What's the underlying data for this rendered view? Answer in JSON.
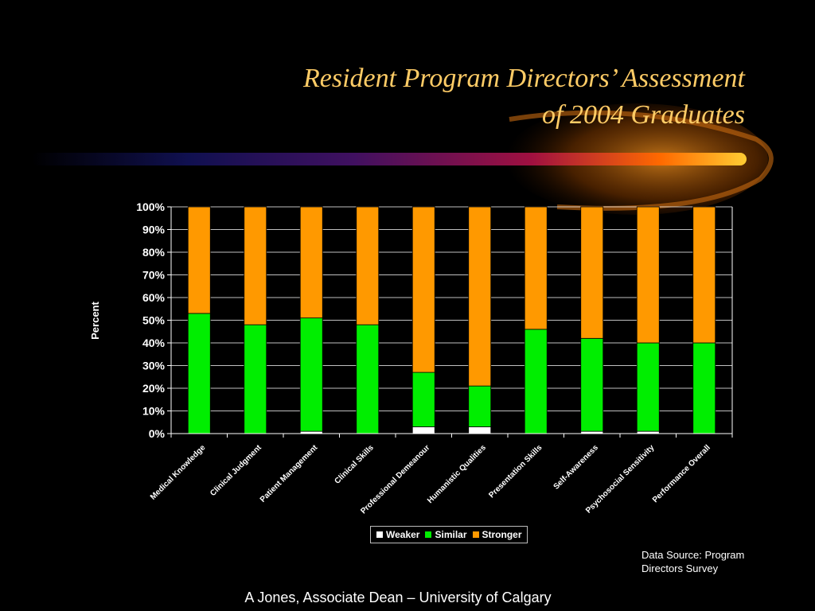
{
  "slide": {
    "title_line1": "Resident Program Directors’ Assessment",
    "title_line2": "of 2004 Graduates",
    "source_line1": "Data Source: Program",
    "source_line2": "Directors Survey",
    "footer": "A Jones, Associate Dean – University of Calgary",
    "colors": {
      "background": "#000000",
      "title": "#ffcc66"
    }
  },
  "chart_data": {
    "type": "bar",
    "stacked": true,
    "categories": [
      "Medical Knowledge",
      "Clinical  Judgment",
      "Patient Management",
      "Clinical Skills",
      "Professional Demeanour",
      "Humanistic Qualities",
      "Presentation Skills",
      "Self-Awareness",
      "Psychosocial Sensitivity",
      "Performance Overall"
    ],
    "series": [
      {
        "name": "Weaker",
        "color": "#ffffff",
        "values": [
          0,
          0,
          1,
          0,
          3,
          3,
          0,
          1,
          1,
          0
        ]
      },
      {
        "name": "Similar",
        "color": "#00ee00",
        "values": [
          53,
          48,
          50,
          48,
          24,
          18,
          46,
          41,
          39,
          40
        ]
      },
      {
        "name": "Stronger",
        "color": "#ff9900",
        "values": [
          47,
          52,
          49,
          52,
          73,
          79,
          54,
          58,
          60,
          60
        ]
      }
    ],
    "ylabel": "Percent",
    "xlabel": "",
    "ylim": [
      0,
      100
    ],
    "yticks": [
      "0%",
      "10%",
      "20%",
      "30%",
      "40%",
      "50%",
      "60%",
      "70%",
      "80%",
      "90%",
      "100%"
    ],
    "grid": true,
    "legend": "bottom"
  }
}
